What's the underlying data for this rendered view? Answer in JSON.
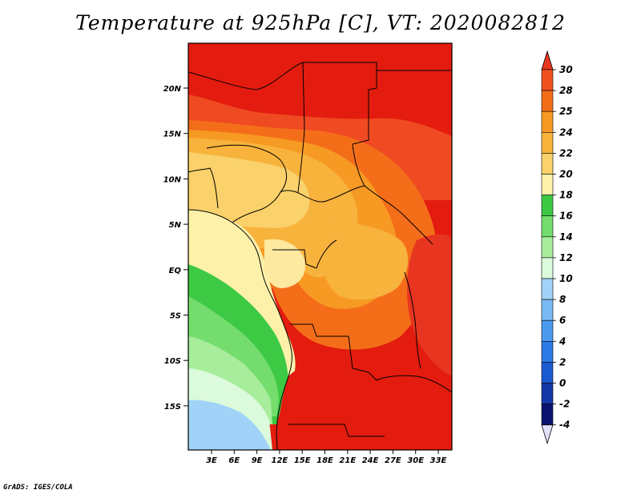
{
  "title": "Temperature at 925hPa [C], VT: 2020082812",
  "credit": "GrADS: IGES/COLA",
  "map": {
    "lat_ticks": [
      "20N",
      "15N",
      "10N",
      "5N",
      "EQ",
      "5S",
      "10S",
      "15S"
    ],
    "lon_ticks": [
      "3E",
      "6E",
      "9E",
      "12E",
      "15E",
      "18E",
      "21E",
      "24E",
      "27E",
      "30E",
      "33E"
    ]
  },
  "colorbar": {
    "labels": [
      "30",
      "28",
      "25",
      "24",
      "22",
      "20",
      "18",
      "16",
      "14",
      "12",
      "10",
      "8",
      "6",
      "4",
      "2",
      "0",
      "-2",
      "-4"
    ],
    "colors": {
      "above30": "#e8351f",
      "c28_30": "#f05020",
      "c25_28": "#f46e1a",
      "c24_25": "#f79a23",
      "c22_24": "#f8b33d",
      "c20_22": "#fad16a",
      "c18_20": "#fdf1a9",
      "c16_18": "#3dc944",
      "c14_16": "#74dd6d",
      "c12_14": "#a7ed9c",
      "c10_12": "#dcfadc",
      "c8_10": "#a1d3f8",
      "c6_8": "#7abaf4",
      "c4_6": "#4c9af0",
      "c2_4": "#2d7ae6",
      "c0_2": "#1c5ad2",
      "cm2_0": "#1238a8",
      "cm4_m2": "#0a1470",
      "below_m4": "#e0e0f8"
    }
  }
}
